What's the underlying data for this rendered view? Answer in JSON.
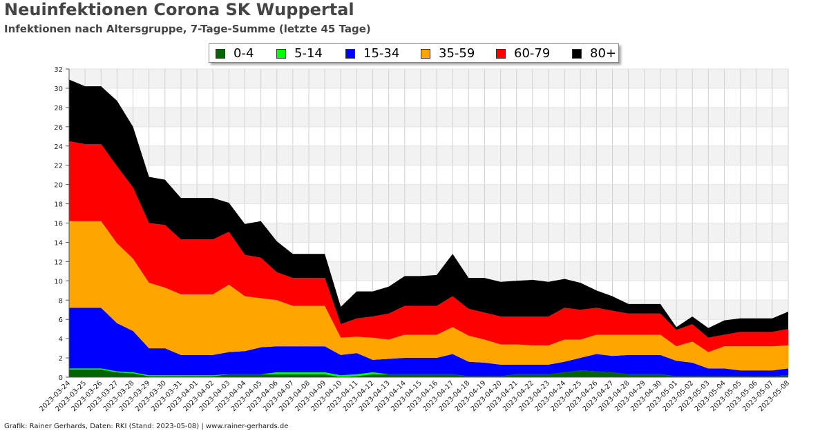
{
  "header": {
    "title": "Neuinfektionen Corona SK Wuppertal",
    "subtitle": "Infektionen nach Altersgruppe, 7-Tage-Summe (letzte 45 Tage)"
  },
  "footer": {
    "credit": "Grafik: Rainer Gerhards, Daten: RKI (Stand: 2023-05-08) | www.rainer-gerhards.de"
  },
  "chart_data": {
    "type": "area",
    "stacked": true,
    "title": "Neuinfektionen Corona SK Wuppertal",
    "subtitle": "Infektionen nach Altersgruppe, 7-Tage-Summe (letzte 45 Tage)",
    "xlabel": "",
    "ylabel": "",
    "ylim": [
      0,
      32
    ],
    "yticks": [
      0,
      2,
      4,
      6,
      8,
      10,
      12,
      14,
      16,
      18,
      20,
      22,
      24,
      26,
      28,
      30,
      32
    ],
    "grid": true,
    "legend_position": "top-center",
    "x": [
      "2023-03-24",
      "2023-03-25",
      "2023-03-26",
      "2023-03-27",
      "2023-03-28",
      "2023-03-29",
      "2023-03-30",
      "2023-03-31",
      "2023-04-01",
      "2023-04-02",
      "2023-04-03",
      "2023-04-04",
      "2023-04-05",
      "2023-04-06",
      "2023-04-07",
      "2023-04-08",
      "2023-04-09",
      "2023-04-10",
      "2023-04-11",
      "2023-04-12",
      "2023-04-13",
      "2023-04-14",
      "2023-04-15",
      "2023-04-16",
      "2023-04-17",
      "2023-04-18",
      "2023-04-19",
      "2023-04-20",
      "2023-04-21",
      "2023-04-22",
      "2023-04-23",
      "2023-04-24",
      "2023-04-25",
      "2023-04-26",
      "2023-04-27",
      "2023-04-28",
      "2023-04-29",
      "2023-04-30",
      "2023-05-01",
      "2023-05-02",
      "2023-05-03",
      "2023-05-04",
      "2023-05-05",
      "2023-05-06",
      "2023-05-07",
      "2023-05-08"
    ],
    "series": [
      {
        "name": "0-4",
        "color": "#006400",
        "values": [
          0.8,
          0.8,
          0.8,
          0.5,
          0.4,
          0.1,
          0.1,
          0.1,
          0.1,
          0.1,
          0.3,
          0.3,
          0.3,
          0.3,
          0.3,
          0.3,
          0.3,
          0,
          0.1,
          0.3,
          0.3,
          0.3,
          0.3,
          0.3,
          0.3,
          0.1,
          0.1,
          0.1,
          0.3,
          0.3,
          0.3,
          0.5,
          0.7,
          0.6,
          0.5,
          0.3,
          0.3,
          0.3,
          0.1,
          0.1,
          0.1,
          0.1,
          0.1,
          0.1,
          0.1,
          0.2
        ]
      },
      {
        "name": "5-14",
        "color": "#00ff00",
        "values": [
          0.1,
          0.1,
          0.1,
          0.1,
          0.1,
          0.1,
          0.1,
          0.1,
          0.1,
          0.1,
          0,
          0,
          0,
          0.2,
          0.2,
          0.2,
          0.2,
          0.2,
          0.2,
          0.2,
          0,
          0,
          0,
          0,
          0,
          0,
          0,
          0,
          0,
          0,
          0,
          0,
          0,
          0,
          0,
          0,
          0,
          0,
          0,
          0,
          0,
          0,
          0,
          0,
          0,
          0
        ]
      },
      {
        "name": "15-34",
        "color": "#0000ff",
        "values": [
          6.3,
          6.3,
          6.3,
          5.0,
          4.3,
          2.8,
          2.8,
          2.1,
          2.1,
          2.1,
          2.3,
          2.4,
          2.8,
          2.7,
          2.7,
          2.7,
          2.7,
          2.1,
          2.2,
          1.3,
          1.6,
          1.7,
          1.7,
          1.7,
          2.1,
          1.5,
          1.4,
          1.2,
          1.0,
          1.0,
          1.0,
          1.1,
          1.3,
          1.8,
          1.7,
          2.0,
          2.0,
          2.0,
          1.6,
          1.4,
          0.8,
          0.8,
          0.6,
          0.6,
          0.6,
          0.7
        ]
      },
      {
        "name": "35-59",
        "color": "#ffa500",
        "values": [
          9.0,
          9.0,
          9.0,
          8.3,
          7.5,
          6.8,
          6.3,
          6.3,
          6.3,
          6.3,
          7.0,
          5.7,
          5.1,
          4.8,
          4.2,
          4.2,
          4.2,
          1.8,
          1.7,
          2.3,
          2.0,
          2.4,
          2.4,
          2.4,
          2.8,
          2.7,
          2.4,
          2.1,
          2.1,
          2.0,
          2.0,
          2.3,
          1.9,
          2.0,
          2.2,
          2.1,
          2.1,
          2.1,
          1.5,
          2.2,
          1.7,
          2.3,
          2.5,
          2.5,
          2.5,
          2.4
        ]
      },
      {
        "name": "60-79",
        "color": "#ff0000",
        "values": [
          8.3,
          8.0,
          8.0,
          8.0,
          7.4,
          6.2,
          6.5,
          5.7,
          5.7,
          5.7,
          5.5,
          4.3,
          4.2,
          2.9,
          2.9,
          2.9,
          2.9,
          1.4,
          1.9,
          2.2,
          2.7,
          3.0,
          3.0,
          3.0,
          3.2,
          2.8,
          2.8,
          2.9,
          2.9,
          3.0,
          3.0,
          3.3,
          3.1,
          2.8,
          2.5,
          2.2,
          2.2,
          2.2,
          1.7,
          1.8,
          1.5,
          1.2,
          1.5,
          1.5,
          1.5,
          1.7
        ]
      },
      {
        "name": "80+",
        "color": "#000000",
        "values": [
          6.4,
          6.0,
          6.0,
          6.8,
          6.3,
          4.8,
          4.7,
          4.3,
          4.3,
          4.3,
          3.0,
          3.2,
          3.8,
          3.2,
          2.5,
          2.5,
          2.5,
          1.8,
          2.8,
          2.6,
          2.8,
          3.1,
          3.1,
          3.2,
          4.4,
          3.2,
          3.6,
          3.6,
          3.7,
          3.8,
          3.6,
          3.0,
          2.8,
          1.8,
          1.5,
          1.0,
          1.0,
          1.0,
          0.3,
          0.8,
          1.0,
          1.5,
          1.4,
          1.4,
          1.4,
          1.8
        ]
      }
    ]
  }
}
